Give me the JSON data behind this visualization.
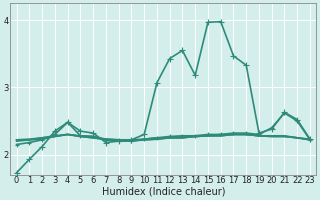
{
  "xlabel": "Humidex (Indice chaleur)",
  "xlim": [
    -0.5,
    23.5
  ],
  "ylim": [
    1.7,
    4.25
  ],
  "yticks": [
    2,
    3,
    4
  ],
  "xticks": [
    0,
    1,
    2,
    3,
    4,
    5,
    6,
    7,
    8,
    9,
    10,
    11,
    12,
    13,
    14,
    15,
    16,
    17,
    18,
    19,
    20,
    21,
    22,
    23
  ],
  "bg_color": "#d4eeec",
  "grid_color": "#ffffff",
  "line_color": "#2e8b7a",
  "lines": [
    {
      "x": [
        0,
        1,
        2,
        3,
        4,
        5,
        6,
        7,
        8,
        9,
        10,
        11,
        12,
        13,
        14,
        15,
        16,
        17,
        18,
        19,
        20,
        21,
        22,
        23
      ],
      "y": [
        1.73,
        1.93,
        2.12,
        2.35,
        2.48,
        2.35,
        2.32,
        2.18,
        2.2,
        2.22,
        2.3,
        3.07,
        3.43,
        3.55,
        3.18,
        3.97,
        3.98,
        3.47,
        3.33,
        2.32,
        2.38,
        2.63,
        2.52,
        2.23
      ],
      "marker": "+",
      "ms": 4,
      "lw": 1.2
    },
    {
      "x": [
        0,
        1,
        2,
        3,
        4,
        5,
        6,
        7,
        8,
        9,
        10,
        11,
        12,
        13,
        14,
        15,
        16,
        17,
        18,
        19,
        20,
        21,
        22,
        23
      ],
      "y": [
        2.15,
        2.18,
        2.22,
        2.3,
        2.48,
        2.28,
        2.27,
        2.22,
        2.2,
        2.2,
        2.23,
        2.25,
        2.27,
        2.28,
        2.28,
        2.3,
        2.3,
        2.32,
        2.32,
        2.3,
        2.4,
        2.62,
        2.5,
        2.22
      ],
      "marker": "+",
      "ms": 3,
      "lw": 1.2
    },
    {
      "x": [
        0,
        1,
        2,
        3,
        4,
        5,
        6,
        7,
        8,
        9,
        10,
        11,
        12,
        13,
        14,
        15,
        16,
        17,
        18,
        19,
        20,
        21,
        22,
        23
      ],
      "y": [
        2.2,
        2.22,
        2.23,
        2.27,
        2.3,
        2.27,
        2.25,
        2.22,
        2.2,
        2.2,
        2.22,
        2.23,
        2.25,
        2.25,
        2.27,
        2.28,
        2.3,
        2.3,
        2.3,
        2.28,
        2.27,
        2.27,
        2.25,
        2.22
      ],
      "marker": null,
      "ms": 0,
      "lw": 1.2
    },
    {
      "x": [
        0,
        1,
        2,
        3,
        4,
        5,
        6,
        7,
        8,
        9,
        10,
        11,
        12,
        13,
        14,
        15,
        16,
        17,
        18,
        19,
        20,
        21,
        22,
        23
      ],
      "y": [
        2.22,
        2.22,
        2.25,
        2.27,
        2.3,
        2.27,
        2.25,
        2.23,
        2.22,
        2.22,
        2.22,
        2.23,
        2.25,
        2.25,
        2.27,
        2.28,
        2.28,
        2.3,
        2.3,
        2.28,
        2.27,
        2.27,
        2.25,
        2.22
      ],
      "marker": null,
      "ms": 0,
      "lw": 1.2
    },
    {
      "x": [
        0,
        1,
        2,
        3,
        4,
        5,
        6,
        7,
        8,
        9,
        10,
        11,
        12,
        13,
        14,
        15,
        16,
        17,
        18,
        19,
        20,
        21,
        22,
        23
      ],
      "y": [
        2.22,
        2.23,
        2.25,
        2.28,
        2.3,
        2.28,
        2.27,
        2.23,
        2.22,
        2.22,
        2.23,
        2.25,
        2.25,
        2.27,
        2.27,
        2.28,
        2.28,
        2.3,
        2.3,
        2.28,
        2.28,
        2.28,
        2.25,
        2.23
      ],
      "marker": null,
      "ms": 0,
      "lw": 1.2
    }
  ]
}
